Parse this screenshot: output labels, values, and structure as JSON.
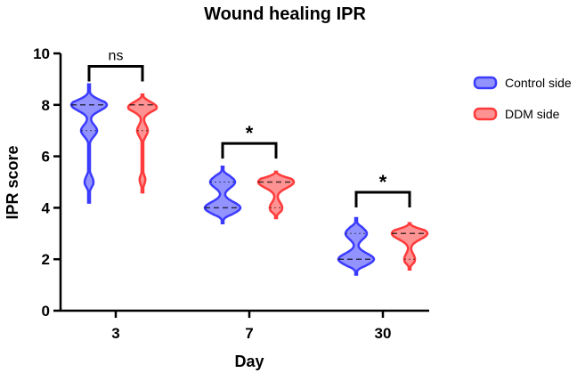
{
  "chart_data": {
    "type": "violin",
    "title": "Wound healing IPR",
    "xlabel": "Day",
    "ylabel": "IPR score",
    "ylim": [
      0,
      10
    ],
    "yticks": [
      0,
      2,
      4,
      6,
      8,
      10
    ],
    "categories": [
      "3",
      "7",
      "30"
    ],
    "legend_position": "right",
    "series": [
      {
        "name": "Control side",
        "color": "#3b3bff",
        "violins": [
          {
            "min": 4.2,
            "max": 8.8,
            "median": 8.0,
            "q1": 7.0,
            "q3": 8.0,
            "modes": [
              {
                "y": 8.0,
                "w": 1.0
              },
              {
                "y": 7.0,
                "w": 0.45
              },
              {
                "y": 5.0,
                "w": 0.25
              }
            ]
          },
          {
            "min": 3.4,
            "max": 5.6,
            "median": 4.0,
            "q1": 4.0,
            "q3": 5.0,
            "modes": [
              {
                "y": 4.0,
                "w": 1.0
              },
              {
                "y": 5.0,
                "w": 0.7
              }
            ]
          },
          {
            "min": 1.4,
            "max": 3.6,
            "median": 2.0,
            "q1": 2.0,
            "q3": 3.0,
            "modes": [
              {
                "y": 2.0,
                "w": 1.0
              },
              {
                "y": 3.0,
                "w": 0.6
              }
            ]
          }
        ]
      },
      {
        "name": "DDM side",
        "color": "#ff3b3b",
        "violins": [
          {
            "min": 4.6,
            "max": 8.4,
            "median": 8.0,
            "q1": 7.0,
            "q3": 8.0,
            "modes": [
              {
                "y": 8.0,
                "w": 1.0
              },
              {
                "y": 7.0,
                "w": 0.3
              },
              {
                "y": 5.0,
                "w": 0.2
              }
            ]
          },
          {
            "min": 3.6,
            "max": 5.4,
            "median": 5.0,
            "q1": 4.0,
            "q3": 5.0,
            "modes": [
              {
                "y": 5.0,
                "w": 1.0
              },
              {
                "y": 4.0,
                "w": 0.35
              }
            ]
          },
          {
            "min": 1.6,
            "max": 3.4,
            "median": 3.0,
            "q1": 2.0,
            "q3": 3.0,
            "modes": [
              {
                "y": 3.0,
                "w": 1.0
              },
              {
                "y": 2.0,
                "w": 0.3
              }
            ]
          }
        ]
      }
    ],
    "annotations": [
      {
        "category": "3",
        "label": "ns",
        "y": 9.5
      },
      {
        "category": "7",
        "label": "*",
        "y": 6.5
      },
      {
        "category": "30",
        "label": "*",
        "y": 4.6
      }
    ]
  }
}
